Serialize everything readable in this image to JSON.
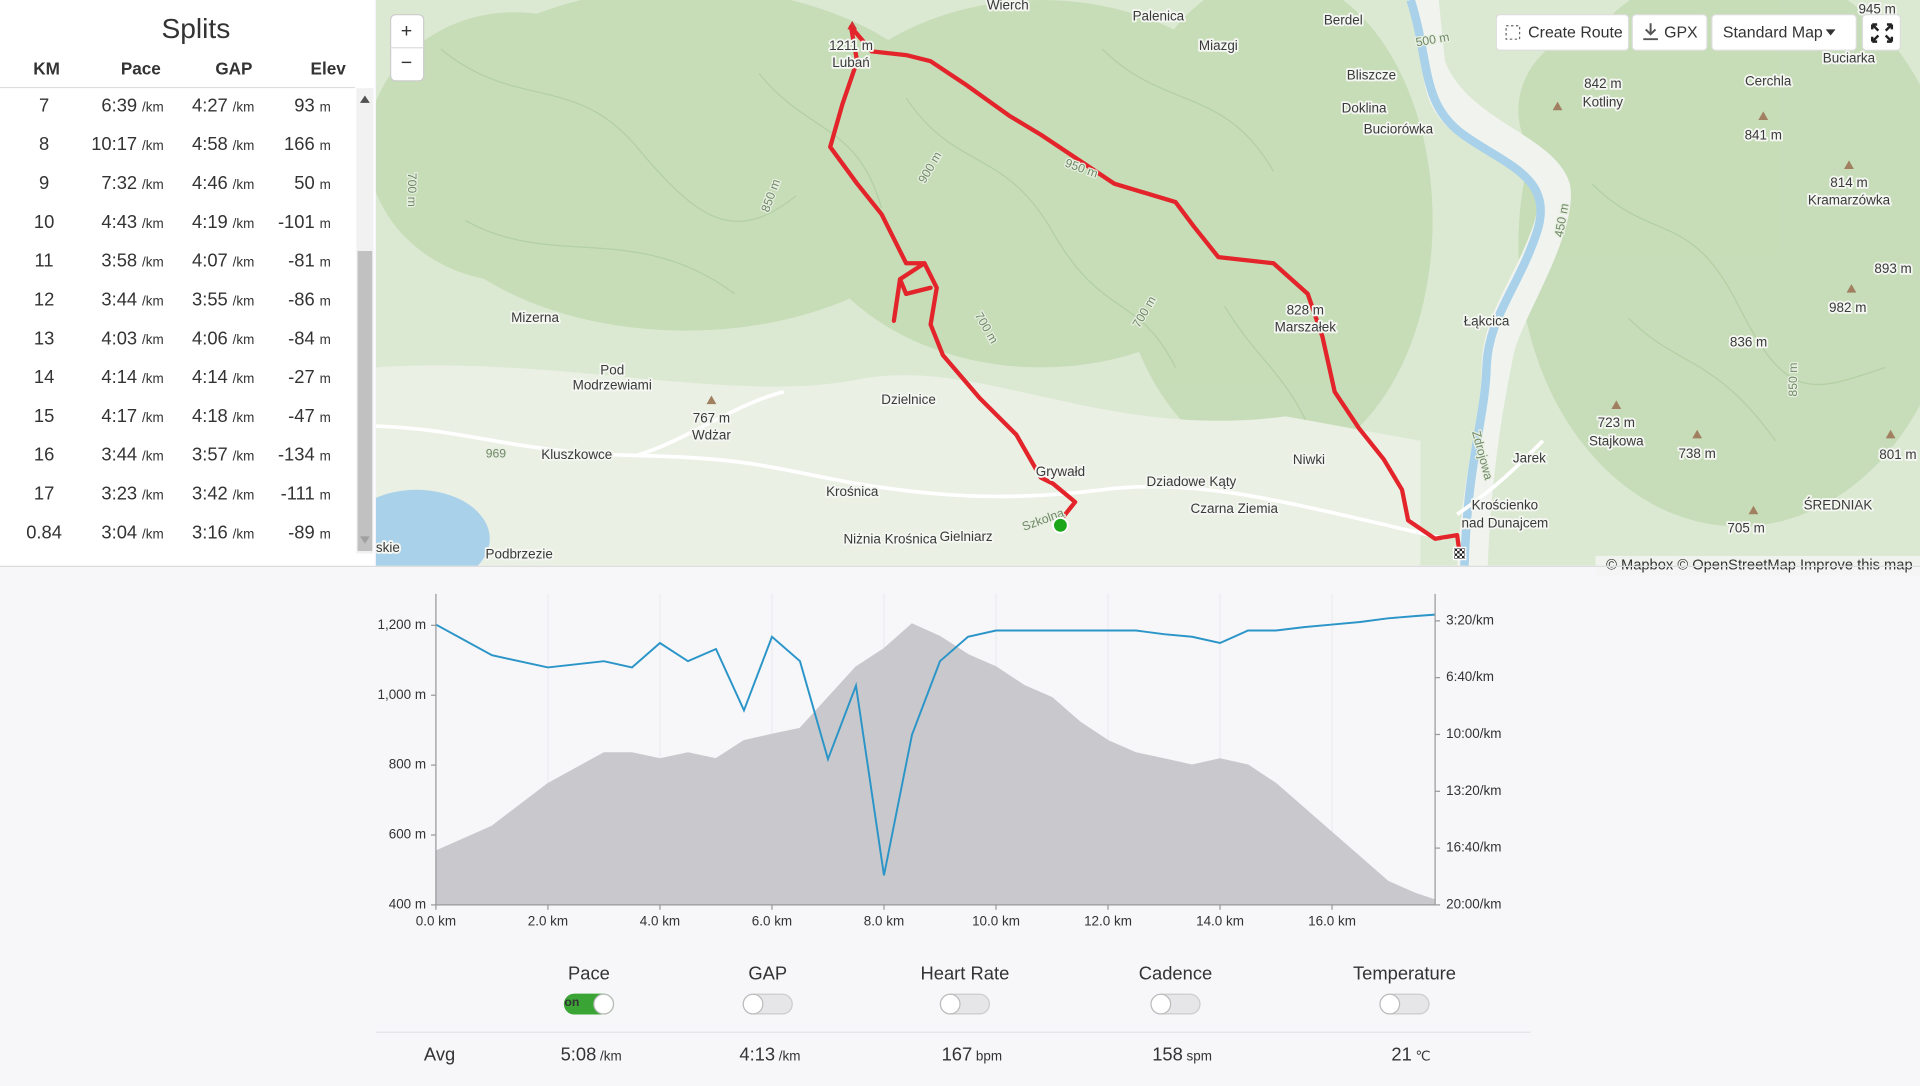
{
  "splits": {
    "title": "Splits",
    "columns": [
      "KM",
      "Pace",
      "GAP",
      "Elev"
    ],
    "units": {
      "pace": "/km",
      "gap": "/km",
      "elev": "m"
    },
    "rows": [
      [
        "7",
        "6:39",
        "4:27",
        "93"
      ],
      [
        "8",
        "10:17",
        "4:58",
        "166"
      ],
      [
        "9",
        "7:32",
        "4:46",
        "50"
      ],
      [
        "10",
        "4:43",
        "4:19",
        "-101"
      ],
      [
        "11",
        "3:58",
        "4:07",
        "-81"
      ],
      [
        "12",
        "3:44",
        "3:55",
        "-86"
      ],
      [
        "13",
        "4:03",
        "4:06",
        "-84"
      ],
      [
        "14",
        "4:14",
        "4:14",
        "-27"
      ],
      [
        "15",
        "4:17",
        "4:18",
        "-47"
      ],
      [
        "16",
        "3:44",
        "3:57",
        "-134"
      ],
      [
        "17",
        "3:23",
        "3:42",
        "-111"
      ],
      [
        "0.84",
        "3:04",
        "3:16",
        "-89"
      ]
    ]
  },
  "map": {
    "zoom_in": "+",
    "zoom_out": "−",
    "buttons": [
      "Create Route",
      "GPX",
      "Standard Map"
    ],
    "attribution": "© Mapbox © OpenStreetMap Improve this map",
    "labels": [
      "Wierch",
      "Palenica",
      "Berdel",
      "Miazgi",
      "Bliszcze",
      "Doklina",
      "Buciorówka",
      "1211 m",
      "Lubań",
      "945 m",
      "Buciarka",
      "Cerchla",
      "842 m",
      "Kotliny",
      "841 m",
      "814 m",
      "Kramarzówka",
      "893 m",
      "982 m",
      "836 m",
      "828 m",
      "Marszałek",
      "Łąkcica",
      "Mizerna",
      "Pod",
      "Modrzewiami",
      "767 m",
      "Wdżar",
      "Kluszkowce",
      "Dzielnice",
      "Krośnica",
      "Niżnia Krośnica",
      "Gielniarz",
      "Grywałd",
      "Dziadowe Kąty",
      "Czarna Ziemia",
      "Niwki",
      "Jarek",
      "723 m",
      "Stajkowa",
      "738 m",
      "801 m",
      "Krościenko",
      "nad Dunajcem",
      "705 m",
      "ŚREDNIAK",
      "Podbrzezie",
      "skie",
      "950 m",
      "900 m",
      "850 m",
      "700 m",
      "500 m",
      "450 m",
      "700 m",
      "700 m",
      "850 m",
      "Zdrojowa",
      "Szkolna",
      "969"
    ]
  },
  "chart_data": {
    "type": "line",
    "x": [
      0,
      1,
      2,
      3,
      3.5,
      4,
      4.5,
      5,
      5.5,
      6,
      6.5,
      7,
      7.5,
      8,
      8.5,
      9,
      9.5,
      10,
      10.5,
      11,
      11.5,
      12,
      12.5,
      13,
      13.5,
      14,
      14.5,
      15,
      15.5,
      16,
      16.5,
      17,
      17.5,
      17.84
    ],
    "series": [
      {
        "color": "#c9c9cd",
        "area": true,
        "values": [
          554,
          625,
          747,
          835,
          835,
          818,
          835,
          818,
          870,
          888,
          905,
          993,
          1081,
          1133,
          1204,
          1168,
          1116,
          1081,
          1028,
          993,
          923,
          870,
          835,
          818,
          800,
          818,
          800,
          747,
          677,
          607,
          537,
          467,
          432,
          414
        ]
      },
      {
        "color": "#2b95c8",
        "axis": "y2",
        "values": [
          213,
          321,
          364,
          342,
          364,
          278,
          342,
          299,
          515,
          256,
          342,
          687,
          428,
          1096,
          601,
          342,
          256,
          234,
          234,
          234,
          234,
          234,
          234,
          247,
          256,
          278,
          234,
          234,
          222,
          213,
          204,
          191,
          183,
          178
        ]
      }
    ],
    "xlim": [
      0,
      17.84
    ],
    "xticks": [
      {
        "value": 0,
        "label": "0.0 km"
      },
      {
        "value": 2,
        "label": "2.0 km"
      },
      {
        "value": 4,
        "label": "4.0 km"
      },
      {
        "value": 6,
        "label": "6.0 km"
      },
      {
        "value": 8,
        "label": "8.0 km"
      },
      {
        "value": 10,
        "label": "10.0 km"
      },
      {
        "value": 12,
        "label": "12.0 km"
      },
      {
        "value": 14,
        "label": "14.0 km"
      },
      {
        "value": 16,
        "label": "16.0 km"
      }
    ],
    "ylim": [
      400,
      1290
    ],
    "yticks": [
      {
        "value": 400,
        "label": "400 m"
      },
      {
        "value": 600,
        "label": "600 m"
      },
      {
        "value": 800,
        "label": "800 m"
      },
      {
        "value": 1000,
        "label": "1,000 m"
      },
      {
        "value": 1200,
        "label": "1,200 m"
      }
    ],
    "y2lim": [
      1200,
      105
    ],
    "y2ticks": [
      {
        "value": 200,
        "label": "3:20/km"
      },
      {
        "value": 400,
        "label": "6:40/km"
      },
      {
        "value": 600,
        "label": "10:00/km"
      },
      {
        "value": 800,
        "label": "13:20/km"
      },
      {
        "value": 1000,
        "label": "16:40/km"
      },
      {
        "value": 1200,
        "label": "20:00/km"
      }
    ],
    "xgrid": true
  },
  "stats": {
    "toggle_text": "on",
    "avg_label": "Avg",
    "metrics": [
      {
        "label": "Pace",
        "on": true,
        "value": "5:08",
        "unit": "/km"
      },
      {
        "label": "GAP",
        "on": false,
        "value": "4:13",
        "unit": "/km"
      },
      {
        "label": "Heart Rate",
        "on": false,
        "value": "167",
        "unit": "bpm"
      },
      {
        "label": "Cadence",
        "on": false,
        "value": "158",
        "unit": "spm"
      },
      {
        "label": "Temperature",
        "on": false,
        "value": "21",
        "unit": "℃"
      }
    ]
  }
}
